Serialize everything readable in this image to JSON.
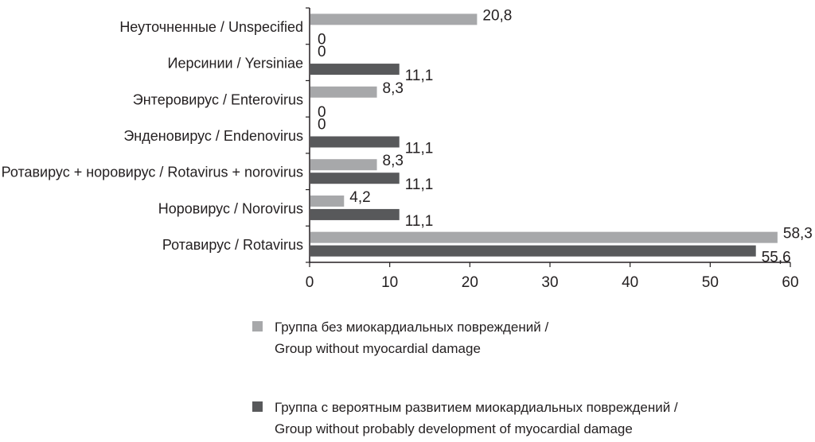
{
  "chart_data": {
    "type": "bar",
    "orientation": "horizontal",
    "categories": [
      "Неуточненные / Unspecified",
      "Иерсинии / Yersiniae",
      "Энтеровирус / Enterovirus",
      "Энденовирус / Endenovirus",
      "Ротавирус + норовирус / Rotavirus + norovirus",
      "Норовирус / Norovirus",
      "Ротавирус / Rotavirus"
    ],
    "series": [
      {
        "name": "Группа без миокардиальных повреждений / Group without myocardial damage",
        "name_lines": [
          "Группа без миокардиальных повреждений /",
          "Group without myocardial damage"
        ],
        "color": "#a7a8aa",
        "values": [
          20.8,
          0,
          8.3,
          0,
          8.3,
          4.2,
          58.3
        ],
        "labels": [
          "20,8",
          "0",
          "8,3",
          "0",
          "8,3",
          "4,2",
          "58,3"
        ]
      },
      {
        "name": "Группа с вероятным развитием миокардиальных повреждений / Group without probably development of myocardial damage",
        "name_lines": [
          "Группа с вероятным развитием миокардиальных повреждений /",
          "Group without probably development of myocardial damage"
        ],
        "color": "#58595b",
        "values": [
          0,
          11.1,
          0,
          11.1,
          11.1,
          11.1,
          55.6
        ],
        "labels": [
          "0",
          "11,1",
          "0",
          "11,1",
          "11,1",
          "11,1",
          "55,6"
        ]
      }
    ],
    "xlim": [
      0,
      60
    ],
    "xticks": [
      "0",
      "10",
      "20",
      "30",
      "40",
      "50",
      "60"
    ],
    "grid": false,
    "legend": "bottom"
  }
}
